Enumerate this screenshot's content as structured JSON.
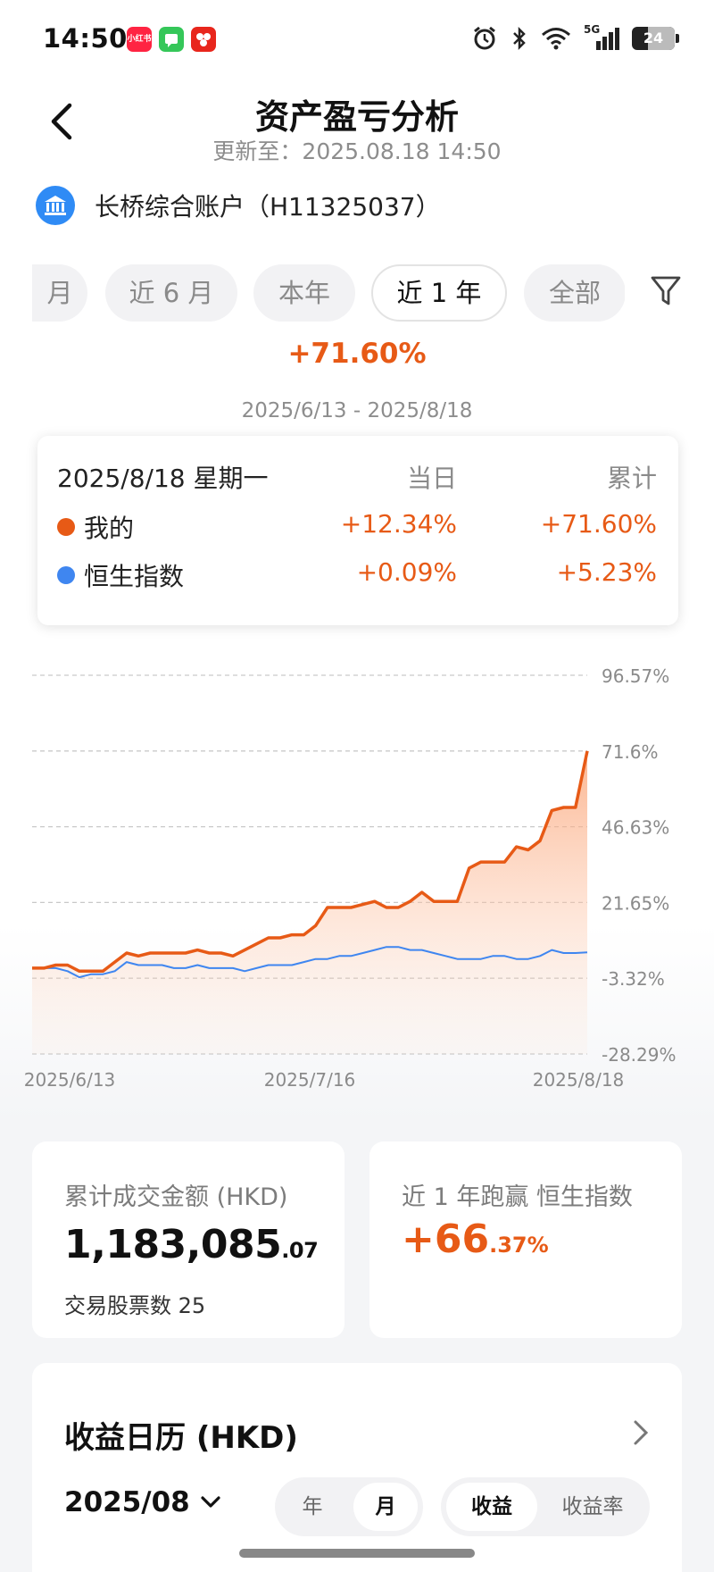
{
  "status_bar": {
    "time": "14:50",
    "apps": [
      {
        "name": "xiaohongshu-icon",
        "label": "小红书",
        "color": "#ff2442"
      },
      {
        "name": "message-icon",
        "label": "",
        "color": "#35c759"
      },
      {
        "name": "app-icon",
        "label": "",
        "color": "#e8261c"
      }
    ],
    "network": "5G",
    "battery": "24"
  },
  "header": {
    "title": "资产盈亏分析",
    "updated": "更新至：2025.08.18 14:50"
  },
  "account": {
    "label": "长桥综合账户（H11325037）"
  },
  "tabs": [
    {
      "label": "月",
      "active": false
    },
    {
      "label": "近 6 月",
      "active": false
    },
    {
      "label": "本年",
      "active": false
    },
    {
      "label": "近 1 年",
      "active": true
    },
    {
      "label": "全部",
      "active": false
    }
  ],
  "summary": {
    "total_pct": "+71.60%",
    "date_range": "2025/6/13 - 2025/8/18"
  },
  "tooltip": {
    "date": "2025/8/18 星期一",
    "col_day": "当日",
    "col_cum": "累计",
    "rows": [
      {
        "label": "我的",
        "day": "+12.34%",
        "cum": "+71.60%",
        "color": "#e75a16"
      },
      {
        "label": "恒生指数",
        "day": "+0.09%",
        "cum": "+5.23%",
        "color": "#3f86f0"
      }
    ]
  },
  "chart_data": {
    "type": "line",
    "x_ticks": [
      "2025/6/13",
      "2025/7/16",
      "2025/8/18"
    ],
    "y_ticks": [
      "96.57%",
      "71.6%",
      "46.63%",
      "21.65%",
      "-3.32%",
      "-28.29%"
    ],
    "ylim": [
      -28.29,
      96.57
    ],
    "grid": true,
    "series": [
      {
        "name": "我的",
        "color": "#e75a16",
        "area": true,
        "values": [
          0,
          0,
          1,
          1,
          -1,
          -1,
          -1,
          2,
          5,
          4,
          5,
          5,
          5,
          5,
          6,
          5,
          5,
          4,
          6,
          8,
          10,
          10,
          11,
          11,
          14,
          20,
          20,
          20,
          21,
          22,
          20,
          20,
          22,
          25,
          22,
          22,
          22,
          33,
          35,
          35,
          35,
          40,
          39,
          42,
          52,
          53,
          53,
          71.6
        ]
      },
      {
        "name": "恒生指数",
        "color": "#3f86f0",
        "area": false,
        "values": [
          0,
          0,
          0,
          -1,
          -3,
          -2,
          -2,
          -1,
          2,
          1,
          1,
          1,
          0,
          0,
          1,
          0,
          0,
          0,
          -1,
          0,
          1,
          1,
          1,
          2,
          3,
          3,
          4,
          4,
          5,
          6,
          7,
          7,
          6,
          6,
          5,
          4,
          3,
          3,
          3,
          4,
          4,
          3,
          3,
          4,
          6,
          5,
          5,
          5.23
        ]
      }
    ]
  },
  "stats": {
    "turnover_label": "累计成交金额 (HKD)",
    "turnover_int": "1,183,085",
    "turnover_dec": ".07",
    "stocks_label": "交易股票数 25",
    "beat_label": "近 1 年跑赢 恒生指数",
    "beat_int": "+66",
    "beat_dec": ".37%"
  },
  "calendar": {
    "title": "收益日历 (HKD)",
    "month": "2025/08",
    "period_options": [
      {
        "label": "年",
        "on": false
      },
      {
        "label": "月",
        "on": true
      }
    ],
    "metric_options": [
      {
        "label": "收益",
        "on": true
      },
      {
        "label": "收益率",
        "on": false
      }
    ]
  }
}
